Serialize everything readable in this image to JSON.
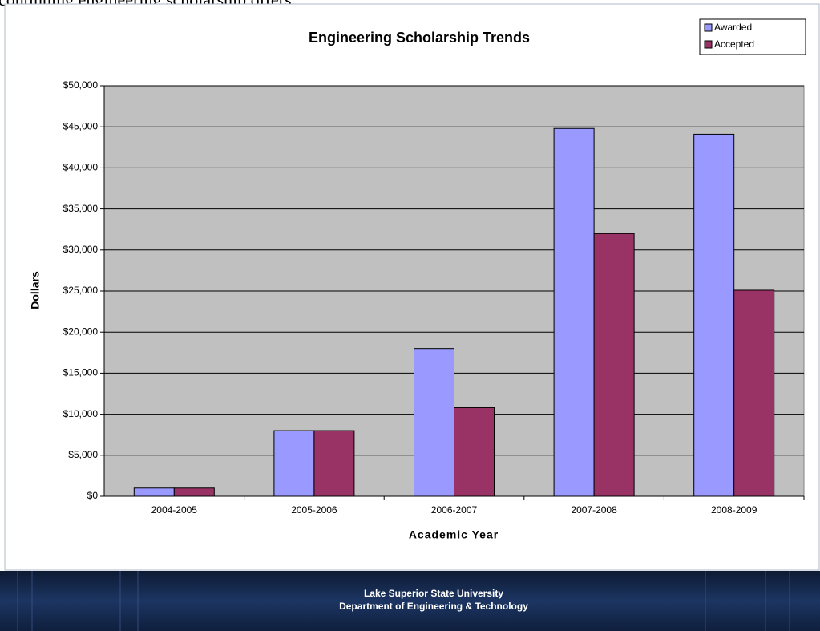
{
  "caption": "continuing engineering scholarship offers.",
  "footer": {
    "line1": "Lake Superior State University",
    "line2": "Department of Engineering & Technology"
  },
  "chart_data": {
    "type": "bar",
    "title": "Engineering Scholarship Trends",
    "x_label": "Academic Year",
    "y_label": "Dollars",
    "categories": [
      "2004-2005",
      "2005-2006",
      "2006-2007",
      "2007-2008",
      "2008-2009"
    ],
    "series": [
      {
        "name": "Awarded",
        "color": "#9999ff",
        "values": [
          1000,
          8000,
          18000,
          44800,
          44100
        ]
      },
      {
        "name": "Accepted",
        "color": "#993366",
        "values": [
          1000,
          8000,
          10800,
          32000,
          25100
        ]
      }
    ],
    "ylim": [
      0,
      50000
    ],
    "yticks": [
      {
        "value": 0,
        "label": "$0"
      },
      {
        "value": 5000,
        "label": "$5,000"
      },
      {
        "value": 10000,
        "label": "$10,000"
      },
      {
        "value": 15000,
        "label": "$15,000"
      },
      {
        "value": 20000,
        "label": "$20,000"
      },
      {
        "value": 25000,
        "label": "$25,000"
      },
      {
        "value": 30000,
        "label": "$30,000"
      },
      {
        "value": 35000,
        "label": "$35,000"
      },
      {
        "value": 40000,
        "label": "$40,000"
      },
      {
        "value": 45000,
        "label": "$45,000"
      },
      {
        "value": 50000,
        "label": "$50,000"
      }
    ],
    "grid": true,
    "legend": "top-right"
  }
}
